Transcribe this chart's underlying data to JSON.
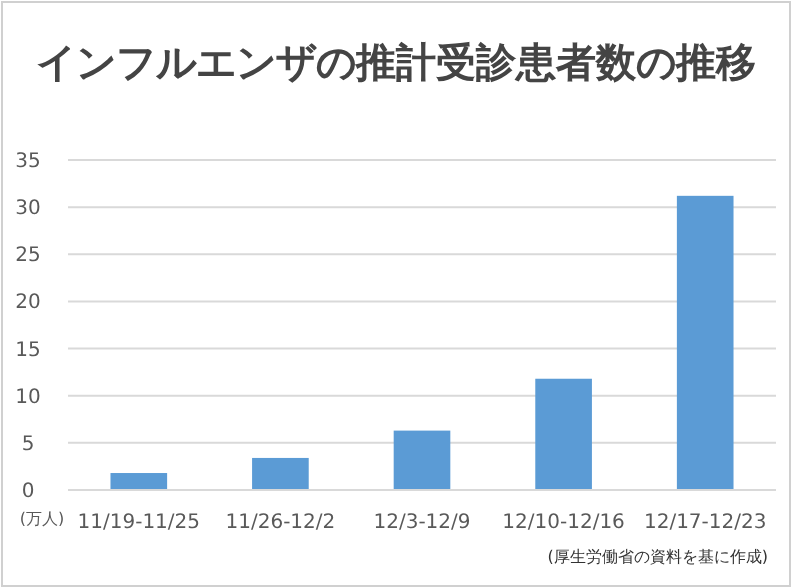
{
  "chart_data": {
    "type": "bar",
    "title": "インフルエンザの推計受診患者数の推移",
    "ylabel": "(万人)",
    "categories": [
      "11/19-11/25",
      "11/26-12/2",
      "12/3-12/9",
      "12/10-12/16",
      "12/17-12/23"
    ],
    "values": [
      1.8,
      3.4,
      6.3,
      11.8,
      31.2
    ],
    "color": "#5b9bd5",
    "ylim": [
      0,
      35
    ],
    "yticks": [
      0,
      5,
      10,
      15,
      20,
      25,
      30,
      35
    ],
    "grid": "y",
    "annotations": [
      "(厚生労働省の資料を基に作成)"
    ]
  }
}
